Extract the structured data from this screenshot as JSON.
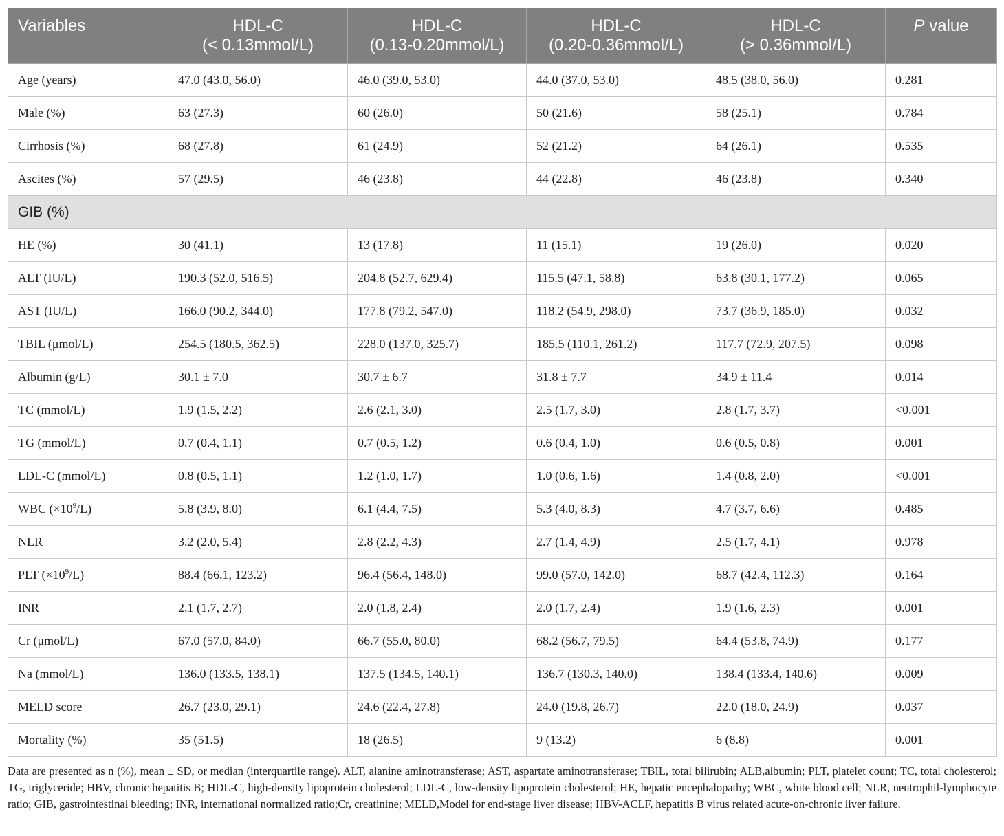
{
  "table": {
    "headers": [
      {
        "line1": "Variables",
        "line2": ""
      },
      {
        "line1": "HDL-C",
        "line2": "(< 0.13mmol/L)"
      },
      {
        "line1": "HDL-C",
        "line2": "(0.13-0.20mmol/L)"
      },
      {
        "line1": "HDL-C",
        "line2": "(0.20-0.36mmol/L)"
      },
      {
        "line1": "HDL-C",
        "line2": "(> 0.36mmol/L)"
      },
      {
        "italic": "P",
        "rest": " value"
      }
    ],
    "rows": [
      {
        "label": "Age (years)",
        "v": [
          "47.0 (43.0, 56.0)",
          "46.0 (39.0, 53.0)",
          "44.0 (37.0, 53.0)",
          "48.5 (38.0, 56.0)",
          "0.281"
        ]
      },
      {
        "label": "Male (%)",
        "v": [
          "63 (27.3)",
          "60 (26.0)",
          "50 (21.6)",
          "58 (25.1)",
          "0.784"
        ]
      },
      {
        "label": "Cirrhosis (%)",
        "v": [
          "68 (27.8)",
          "61 (24.9)",
          "52 (21.2)",
          "64 (26.1)",
          "0.535"
        ]
      },
      {
        "label": "Ascites (%)",
        "v": [
          "57 (29.5)",
          "46 (23.8)",
          "44 (22.8)",
          "46 (23.8)",
          "0.340"
        ]
      }
    ],
    "section_label": "GIB (%)",
    "rows2": [
      {
        "label": "HE (%)",
        "v": [
          "30 (41.1)",
          "13 (17.8)",
          "11 (15.1)",
          "19 (26.0)",
          "0.020"
        ]
      },
      {
        "label": "ALT (IU/L)",
        "v": [
          "190.3 (52.0, 516.5)",
          "204.8 (52.7, 629.4)",
          "115.5 (47.1, 58.8)",
          "63.8 (30.1, 177.2)",
          "0.065"
        ]
      },
      {
        "label": "AST (IU/L)",
        "v": [
          "166.0 (90.2, 344.0)",
          "177.8 (79.2, 547.0)",
          "118.2 (54.9, 298.0)",
          "73.7 (36.9, 185.0)",
          "0.032"
        ]
      },
      {
        "label": "TBIL (μmol/L)",
        "v": [
          "254.5 (180.5, 362.5)",
          "228.0 (137.0, 325.7)",
          "185.5 (110.1, 261.2)",
          "117.7 (72.9, 207.5)",
          "0.098"
        ]
      },
      {
        "label": "Albumin (g/L)",
        "v": [
          "30.1 ± 7.0",
          "30.7 ± 6.7",
          "31.8 ± 7.7",
          "34.9 ± 11.4",
          "0.014"
        ]
      },
      {
        "label": "TC (mmol/L)",
        "v": [
          "1.9 (1.5, 2.2)",
          "2.6 (2.1, 3.0)",
          "2.5 (1.7, 3.0)",
          "2.8 (1.7, 3.7)",
          "<0.001"
        ]
      },
      {
        "label": "TG (mmol/L)",
        "v": [
          "0.7 (0.4, 1.1)",
          "0.7 (0.5, 1.2)",
          "0.6 (0.4, 1.0)",
          "0.6 (0.5, 0.8)",
          "0.001"
        ]
      },
      {
        "label": "LDL-C (mmol/L)",
        "v": [
          "0.8 (0.5, 1.1)",
          "1.2 (1.0, 1.7)",
          "1.0 (0.6, 1.6)",
          "1.4 (0.8, 2.0)",
          "<0.001"
        ]
      },
      {
        "label_pre": "WBC (×10",
        "label_sup": "9",
        "label_post": "/L)",
        "v": [
          "5.8 (3.9, 8.0)",
          "6.1 (4.4, 7.5)",
          "5.3 (4.0, 8.3)",
          "4.7 (3.7, 6.6)",
          "0.485"
        ]
      },
      {
        "label": "NLR",
        "v": [
          "3.2 (2.0, 5.4)",
          "2.8 (2.2, 4.3)",
          "2.7 (1.4, 4.9)",
          "2.5 (1.7, 4.1)",
          "0.978"
        ]
      },
      {
        "label_pre": "PLT (×10",
        "label_sup": "9",
        "label_post": "/L)",
        "v": [
          "88.4 (66.1, 123.2)",
          "96.4 (56.4, 148.0)",
          "99.0 (57.0, 142.0)",
          "68.7 (42.4, 112.3)",
          "0.164"
        ]
      },
      {
        "label": "INR",
        "v": [
          "2.1 (1.7, 2.7)",
          "2.0 (1.8, 2.4)",
          "2.0 (1.7, 2.4)",
          "1.9 (1.6, 2.3)",
          "0.001"
        ]
      },
      {
        "label": "Cr (μmol/L)",
        "v": [
          "67.0 (57.0, 84.0)",
          "66.7 (55.0, 80.0)",
          "68.2 (56.7, 79.5)",
          "64.4 (53.8, 74.9)",
          "0.177"
        ]
      },
      {
        "label": "Na (mmol/L)",
        "v": [
          "136.0 (133.5, 138.1)",
          "137.5 (134.5, 140.1)",
          "136.7 (130.3, 140.0)",
          "138.4 (133.4, 140.6)",
          "0.009"
        ]
      },
      {
        "label": "MELD score",
        "v": [
          "26.7 (23.0, 29.1)",
          "24.6 (22.4, 27.8)",
          "24.0 (19.8, 26.7)",
          "22.0 (18.0, 24.9)",
          "0.037"
        ]
      },
      {
        "label": "Mortality (%)",
        "v": [
          "35 (51.5)",
          "18 (26.5)",
          "9 (13.2)",
          "6 (8.8)",
          "0.001"
        ]
      }
    ]
  },
  "footnote": "Data are presented as n (%), mean ± SD, or median (interquartile range). ALT, alanine aminotransferase; AST, aspartate aminotransferase; TBIL, total bilirubin; ALB,albumin; PLT, platelet count; TC, total cholesterol; TG, triglyceride; HBV, chronic hepatitis B; HDL-C, high-density lipoprotein cholesterol; LDL-C, low-density lipoprotein cholesterol; HE, hepatic encephalopathy; WBC, white blood cell; NLR, neutrophil-lymphocyte ratio; GIB, gastrointestinal bleeding; INR, international normalized ratio;Cr, creatinine; MELD,Model for end-stage liver disease; HBV-ACLF, hepatitis B virus related acute-on-chronic liver failure.",
  "colors": {
    "header_bg": "#808080",
    "header_text": "#ffffff",
    "section_bg": "#e0e0e0",
    "border": "#c9c9c9",
    "text": "#222222"
  }
}
